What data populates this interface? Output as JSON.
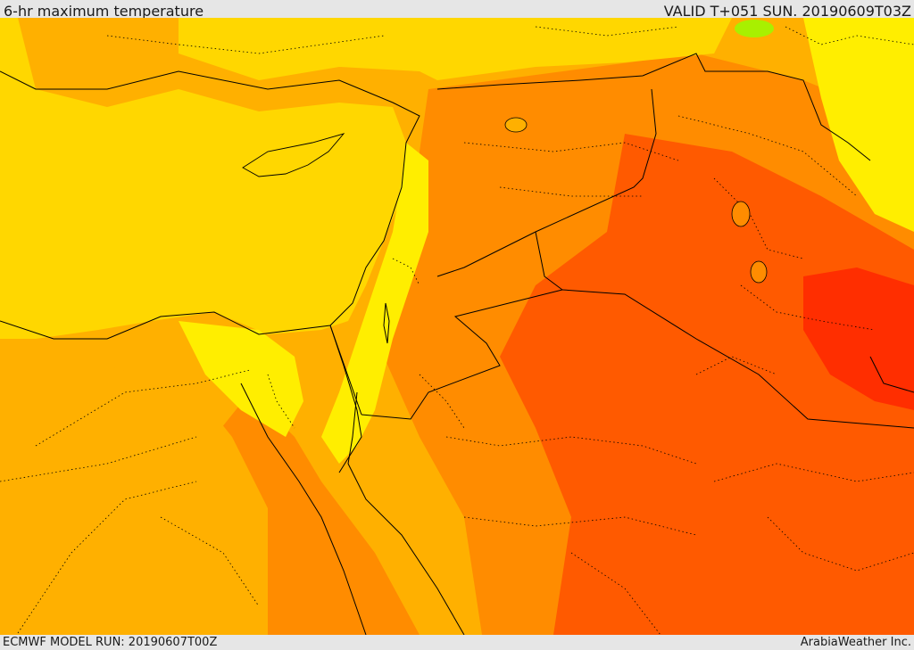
{
  "header": {
    "title": "6-hr maximum temperature",
    "valid": "VALID T+051 SUN. 20190609T03Z"
  },
  "footer": {
    "model_run": "ECMWF MODEL RUN: 20190607T00Z",
    "credit": "ArabiaWeather Inc."
  },
  "map": {
    "field": "6-hr maximum temperature",
    "palette": {
      "sea": "#ffd700",
      "cool": "#ffee00",
      "mild": "#ffb000",
      "warm": "#ff8c00",
      "hot": "#ff5a00",
      "hottest": "#ff2e00",
      "cold_spot": "#a8f000"
    },
    "border_color": "#000000"
  }
}
